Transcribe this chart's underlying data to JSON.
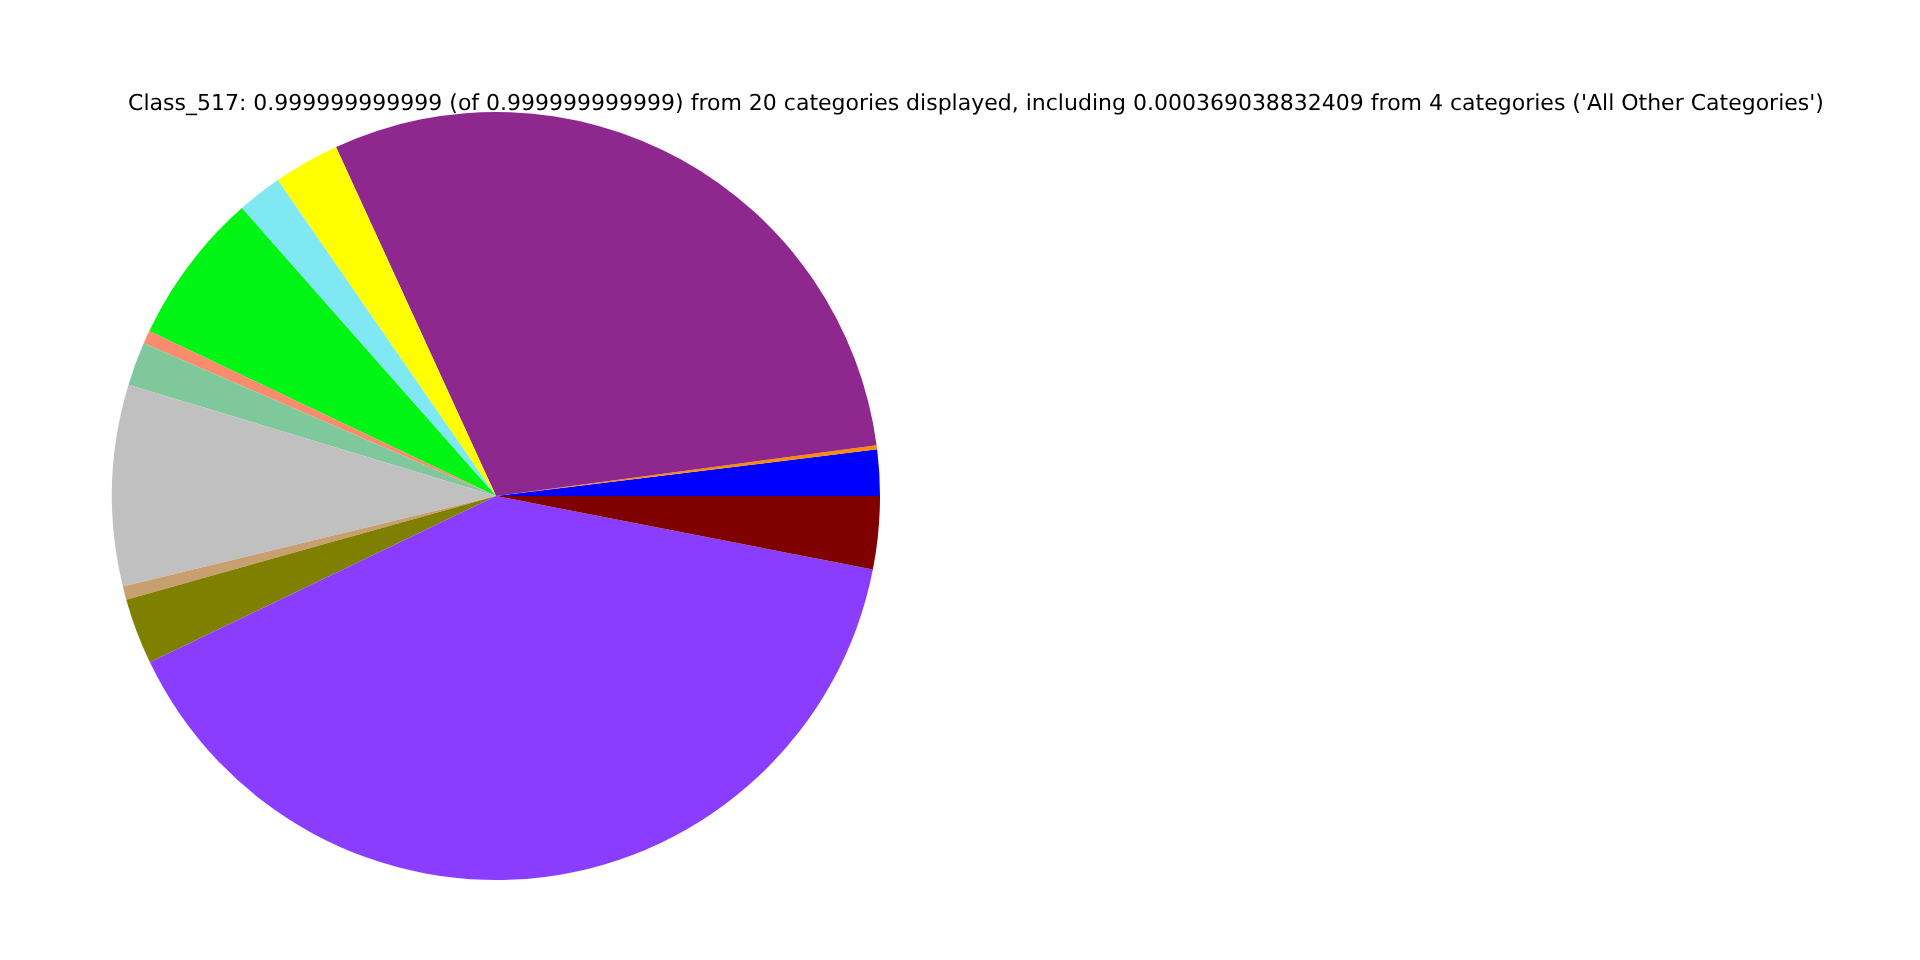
{
  "chart_data": {
    "type": "pie",
    "title": "Class_517: 0.999999999999 (of 0.999999999999) from 20 categories displayed, including 0.000369038832409 from 4 categories ('All Other Categories')",
    "categories": [
      null,
      null,
      null,
      null,
      null,
      null,
      null,
      null,
      null,
      null,
      null,
      null,
      null
    ],
    "values": [
      1.94,
      0.17,
      29.73,
      2.78,
      1.89,
      6.42,
      0.56,
      1.83,
      8.47,
      0.56,
      2.78,
      39.8,
      3.07
    ],
    "colors": [
      "#0000ff",
      "#ff8c00",
      "#8e278e",
      "#ffff00",
      "#7fe8f2",
      "#00f514",
      "#fa8c6e",
      "#7fc89b",
      "#c0c0c0",
      "#c8a070",
      "#808000",
      "#8b3dff",
      "#800000"
    ]
  }
}
